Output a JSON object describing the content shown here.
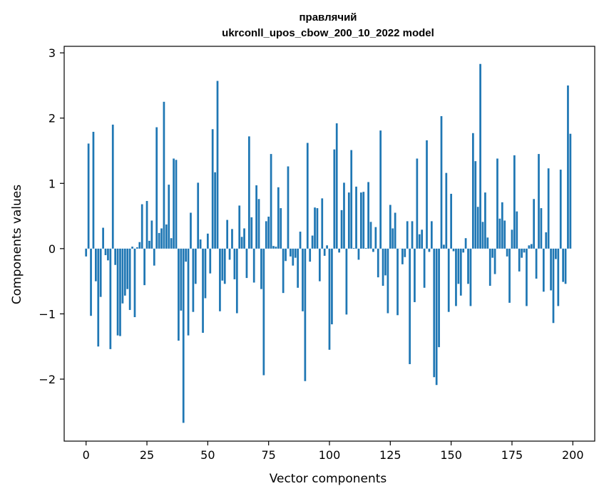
{
  "chart_data": {
    "type": "bar",
    "title_line1": "правлячий",
    "title_line2": "ukrconll_upos_cbow_200_10_2022 model",
    "xlabel": "Vector components",
    "ylabel": "Components values",
    "xlim": [
      -9,
      209
    ],
    "ylim": [
      -2.95,
      3.1
    ],
    "xticks": [
      0,
      25,
      50,
      75,
      100,
      125,
      150,
      175,
      200
    ],
    "xtick_labels": [
      "0",
      "25",
      "50",
      "75",
      "100",
      "125",
      "150",
      "175",
      "200"
    ],
    "yticks": [
      -2,
      -1,
      0,
      1,
      2,
      3
    ],
    "ytick_labels": [
      "−2",
      "−1",
      "0",
      "1",
      "2",
      "3"
    ],
    "bar_color": "#1f77b4",
    "x": [
      0,
      1,
      2,
      3,
      4,
      5,
      6,
      7,
      8,
      9,
      10,
      11,
      12,
      13,
      14,
      15,
      16,
      17,
      18,
      19,
      20,
      21,
      22,
      23,
      24,
      25,
      26,
      27,
      28,
      29,
      30,
      31,
      32,
      33,
      34,
      35,
      36,
      37,
      38,
      39,
      40,
      41,
      42,
      43,
      44,
      45,
      46,
      47,
      48,
      49,
      50,
      51,
      52,
      53,
      54,
      55,
      56,
      57,
      58,
      59,
      60,
      61,
      62,
      63,
      64,
      65,
      66,
      67,
      68,
      69,
      70,
      71,
      72,
      73,
      74,
      75,
      76,
      77,
      78,
      79,
      80,
      81,
      82,
      83,
      84,
      85,
      86,
      87,
      88,
      89,
      90,
      91,
      92,
      93,
      94,
      95,
      96,
      97,
      98,
      99,
      100,
      101,
      102,
      103,
      104,
      105,
      106,
      107,
      108,
      109,
      110,
      111,
      112,
      113,
      114,
      115,
      116,
      117,
      118,
      119,
      120,
      121,
      122,
      123,
      124,
      125,
      126,
      127,
      128,
      129,
      130,
      131,
      132,
      133,
      134,
      135,
      136,
      137,
      138,
      139,
      140,
      141,
      142,
      143,
      144,
      145,
      146,
      147,
      148,
      149,
      150,
      151,
      152,
      153,
      154,
      155,
      156,
      157,
      158,
      159,
      160,
      161,
      162,
      163,
      164,
      165,
      166,
      167,
      168,
      169,
      170,
      171,
      172,
      173,
      174,
      175,
      176,
      177,
      178,
      179,
      180,
      181,
      182,
      183,
      184,
      185,
      186,
      187,
      188,
      189,
      190,
      191,
      192,
      193,
      194,
      195,
      196,
      197,
      198,
      199
    ],
    "values": [
      -0.12,
      1.61,
      -1.03,
      1.79,
      -0.5,
      -1.5,
      -0.74,
      0.32,
      -0.1,
      -0.18,
      -1.54,
      1.9,
      -0.25,
      -1.33,
      -1.34,
      -0.84,
      -0.72,
      -0.62,
      -0.94,
      0.03,
      -1.05,
      0.02,
      0.1,
      0.68,
      -0.56,
      0.73,
      0.12,
      0.43,
      -0.26,
      1.86,
      0.24,
      0.31,
      2.25,
      0.37,
      0.98,
      0.16,
      1.38,
      1.36,
      -1.41,
      -0.95,
      -2.67,
      -0.2,
      -1.33,
      0.55,
      -0.97,
      -0.54,
      1.01,
      0.14,
      -1.29,
      -0.76,
      0.23,
      -0.38,
      1.83,
      1.17,
      2.57,
      -0.96,
      -0.49,
      -0.54,
      0.44,
      -0.17,
      0.3,
      -0.47,
      -0.99,
      0.66,
      0.18,
      0.31,
      -0.45,
      1.72,
      0.48,
      -0.52,
      0.97,
      0.76,
      -0.62,
      -1.94,
      0.42,
      0.49,
      1.45,
      0.04,
      0.03,
      0.94,
      0.62,
      -0.68,
      -0.19,
      1.26,
      -0.12,
      -0.26,
      -0.14,
      -0.6,
      0.26,
      -0.96,
      -2.03,
      1.62,
      -0.2,
      0.2,
      0.63,
      0.62,
      -0.5,
      0.77,
      -0.11,
      0.05,
      -1.55,
      -1.16,
      1.52,
      1.92,
      -0.06,
      0.59,
      1.01,
      -1.01,
      0.86,
      1.51,
      0.01,
      0.95,
      -0.17,
      0.86,
      0.87,
      0.01,
      1.02,
      0.41,
      -0.05,
      0.33,
      -0.44,
      1.81,
      -0.57,
      -0.41,
      -0.99,
      0.67,
      0.31,
      0.55,
      -1.02,
      0.0,
      -0.24,
      -0.13,
      0.42,
      -1.77,
      0.42,
      -0.82,
      1.38,
      0.22,
      0.29,
      -0.6,
      1.66,
      -0.05,
      0.42,
      -1.97,
      -2.09,
      -1.51,
      2.03,
      0.06,
      1.16,
      -0.97,
      0.84,
      -0.04,
      -0.88,
      -0.54,
      -0.72,
      -0.06,
      0.16,
      -0.54,
      -0.88,
      1.77,
      1.34,
      0.64,
      2.83,
      0.41,
      0.86,
      0.17,
      -0.57,
      -0.14,
      -0.39,
      1.38,
      0.46,
      0.71,
      0.43,
      -0.12,
      -0.83,
      0.29,
      1.43,
      0.57,
      -0.35,
      -0.14,
      -0.06,
      -0.88,
      0.05,
      0.07,
      0.76,
      -0.46,
      1.45,
      0.62,
      -0.66,
      0.25,
      1.23,
      -0.64,
      -1.14,
      -0.16,
      -0.88,
      1.21,
      -0.51,
      -0.54,
      2.5,
      1.76
    ]
  }
}
